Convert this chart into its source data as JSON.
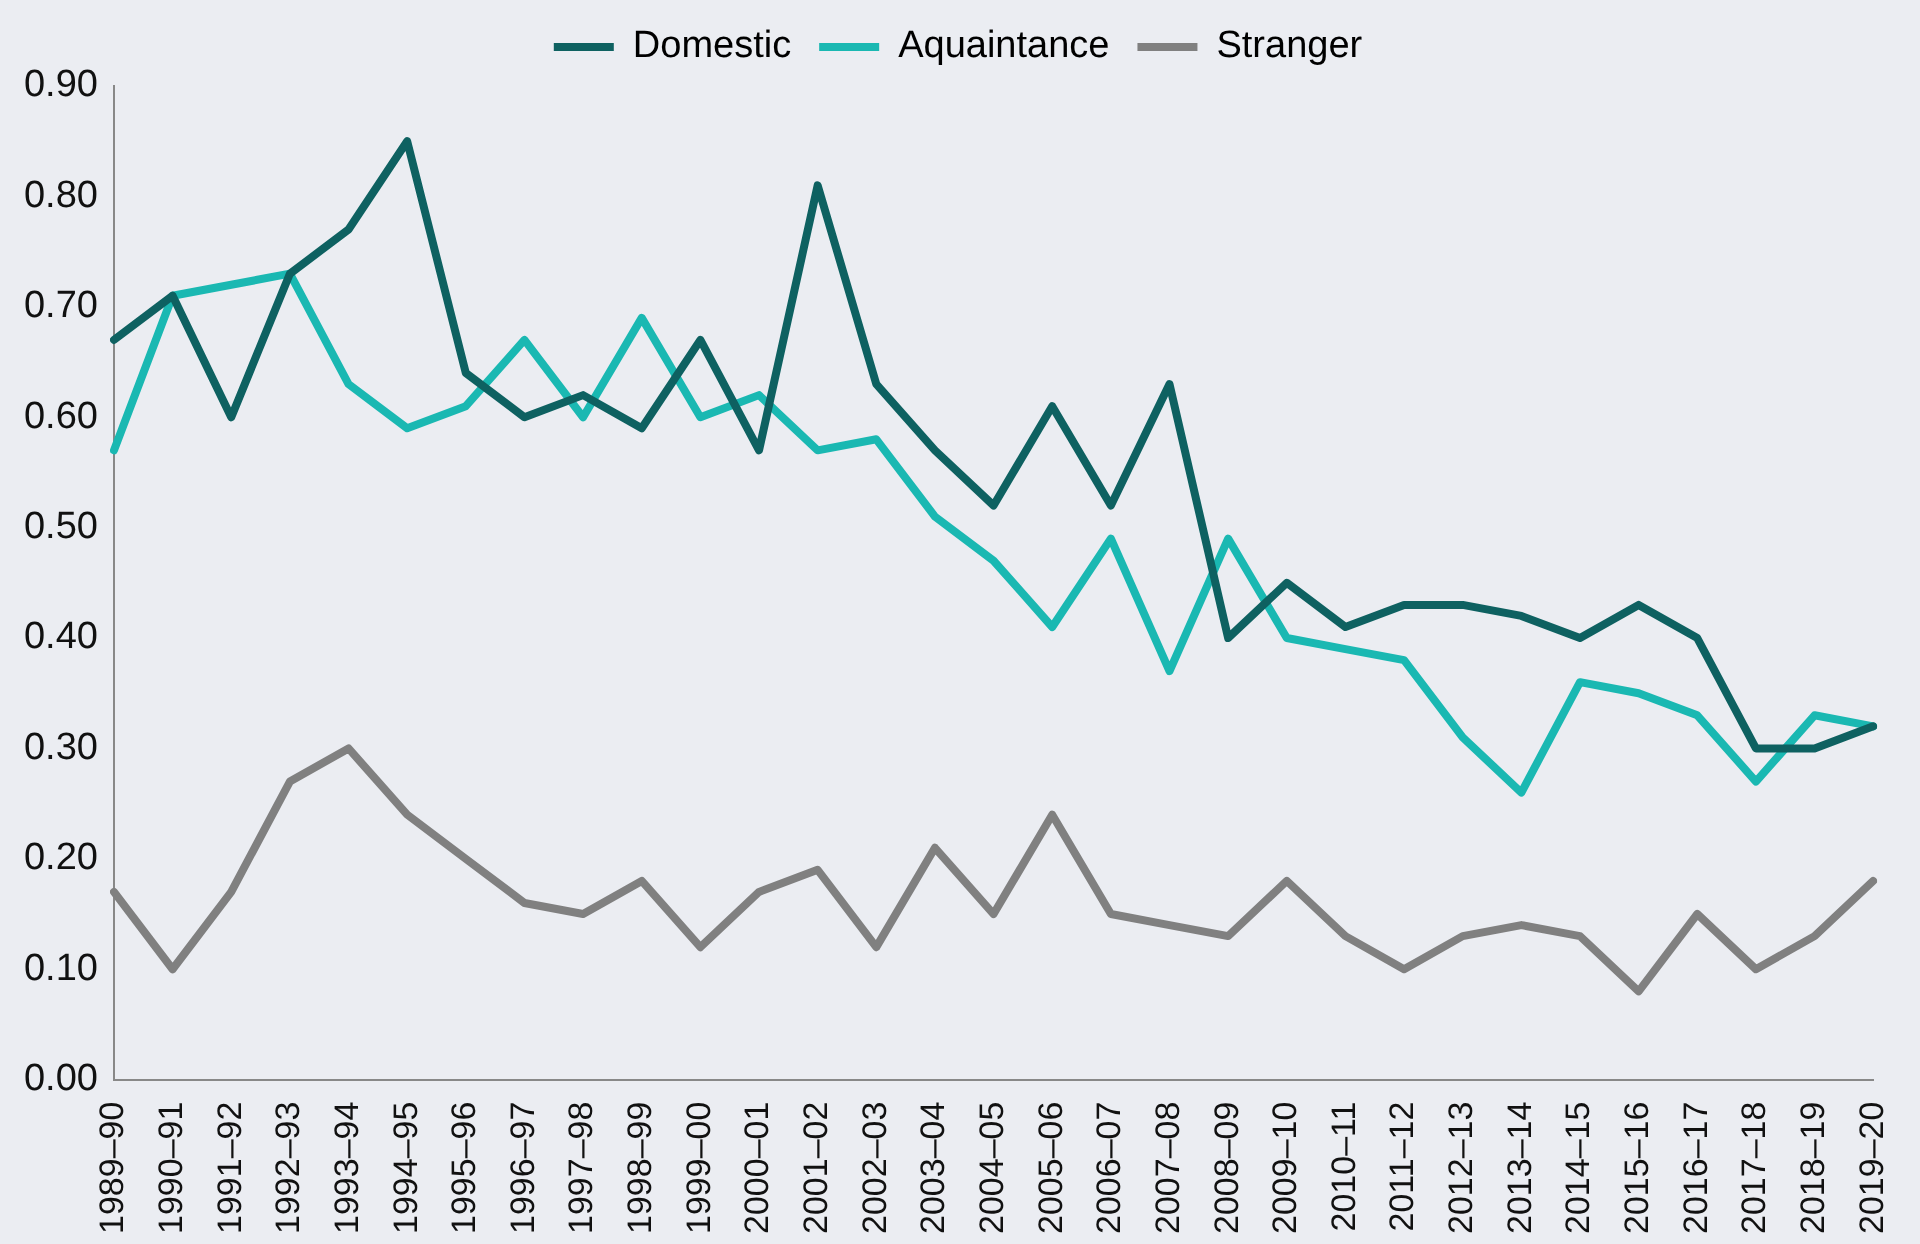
{
  "chart_data": {
    "type": "line",
    "categories": [
      "1989–90",
      "1990–91",
      "1991–92",
      "1992–93",
      "1993–94",
      "1994–95",
      "1995–96",
      "1996–97",
      "1997–98",
      "1998–99",
      "1999–00",
      "2000–01",
      "2001–02",
      "2002–03",
      "2003–04",
      "2004–05",
      "2005–06",
      "2006–07",
      "2007–08",
      "2008–09",
      "2009–10",
      "2010–11",
      "2011–12",
      "2012–13",
      "2013–14",
      "2014–15",
      "2015–16",
      "2016–17",
      "2017–18",
      "2018–19",
      "2019–20"
    ],
    "series": [
      {
        "name": "Domestic",
        "color": "#0e6161",
        "values": [
          0.67,
          0.71,
          0.6,
          0.73,
          0.77,
          0.85,
          0.64,
          0.6,
          0.62,
          0.59,
          0.67,
          0.57,
          0.81,
          0.63,
          0.57,
          0.52,
          0.61,
          0.52,
          0.63,
          0.4,
          0.45,
          0.41,
          0.43,
          0.43,
          0.42,
          0.4,
          0.43,
          0.4,
          0.3,
          0.3,
          0.32
        ]
      },
      {
        "name": "Aquaintance",
        "color": "#1ab8b2",
        "values": [
          0.57,
          0.71,
          0.72,
          0.73,
          0.63,
          0.59,
          0.61,
          0.67,
          0.6,
          0.69,
          0.6,
          0.62,
          0.57,
          0.58,
          0.51,
          0.47,
          0.41,
          0.49,
          0.37,
          0.49,
          0.4,
          0.39,
          0.38,
          0.31,
          0.26,
          0.36,
          0.35,
          0.33,
          0.27,
          0.33,
          0.32
        ]
      },
      {
        "name": "Stranger",
        "color": "#808080",
        "values": [
          0.17,
          0.1,
          0.17,
          0.27,
          0.3,
          0.24,
          0.2,
          0.16,
          0.15,
          0.18,
          0.12,
          0.17,
          0.19,
          0.12,
          0.21,
          0.15,
          0.24,
          0.15,
          0.14,
          0.13,
          0.18,
          0.13,
          0.1,
          0.13,
          0.14,
          0.13,
          0.08,
          0.15,
          0.1,
          0.13,
          0.18
        ]
      }
    ],
    "ylim": [
      0,
      0.9
    ],
    "yticks": [
      {
        "value": 0,
        "label": "0.00"
      },
      {
        "value": 0.1,
        "label": "0.10"
      },
      {
        "value": 0.2,
        "label": "0.20"
      },
      {
        "value": 0.3,
        "label": "0.30"
      },
      {
        "value": 0.4,
        "label": "0.40"
      },
      {
        "value": 0.5,
        "label": "0.50"
      },
      {
        "value": 0.6,
        "label": "0.60"
      },
      {
        "value": 0.7,
        "label": "0.70"
      },
      {
        "value": 0.8,
        "label": "0.80"
      },
      {
        "value": 0.9,
        "label": "0.90"
      }
    ],
    "grid": false,
    "legend": "top",
    "marker": "none",
    "line_style": "solid"
  }
}
